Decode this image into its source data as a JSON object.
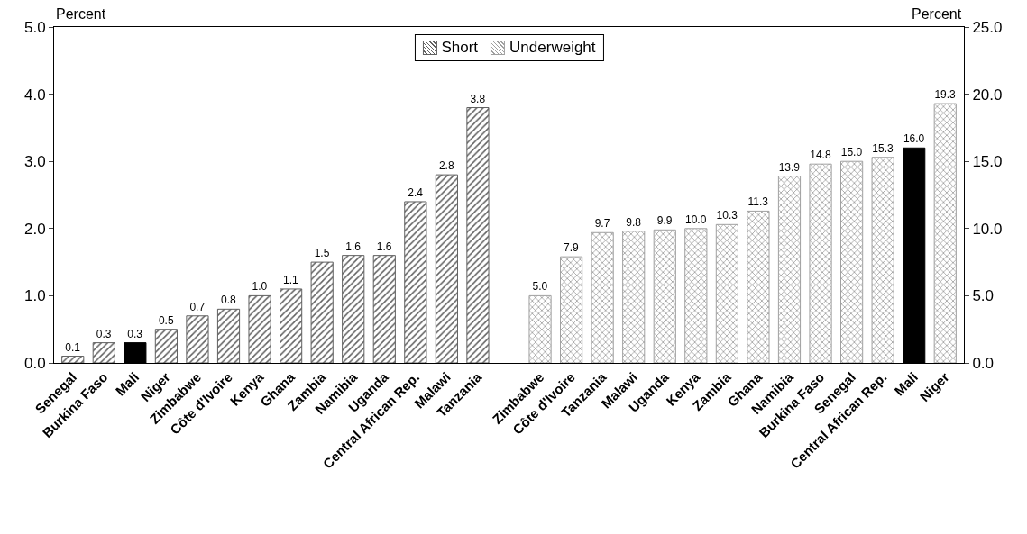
{
  "chart_data": {
    "type": "bar",
    "categories": [
      "Senegal",
      "Burkina Faso",
      "Mali",
      "Niger",
      "Zimbabwe",
      "Côte d'Ivoire",
      "Kenya",
      "Ghana",
      "Zambia",
      "Namibia",
      "Uganda",
      "Central African Rep.",
      "Malawi",
      "Tanzania",
      null,
      "Zimbabwe",
      "Côte d'Ivoire",
      "Tanzania",
      "Malawi",
      "Uganda",
      "Kenya",
      "Zambia",
      "Ghana",
      "Namibia",
      "Burkina Faso",
      "Senegal",
      "Central African Rep.",
      "Mali",
      "Niger"
    ],
    "series": [
      {
        "name": "Short",
        "color": "#606060",
        "colors": [
          "#606060",
          "#606060",
          "#000000",
          "#606060",
          "#606060",
          "#606060",
          "#606060",
          "#606060",
          "#606060",
          "#606060",
          "#606060",
          "#606060",
          "#606060",
          "#606060",
          null,
          null,
          null,
          null,
          null,
          null,
          null,
          null,
          null,
          null,
          null,
          null,
          null,
          null,
          null
        ],
        "values": [
          0.1,
          0.3,
          0.3,
          0.5,
          0.7,
          0.8,
          1.0,
          1.1,
          1.5,
          1.6,
          1.6,
          2.4,
          2.8,
          3.8,
          null,
          null,
          null,
          null,
          null,
          null,
          null,
          null,
          null,
          null,
          null,
          null,
          null,
          null,
          null
        ],
        "value_labels": [
          "0.1",
          "0.3",
          "0.3",
          "0.5",
          "0.7",
          "0.8",
          "1.0",
          "1.1",
          "1.5",
          "1.6",
          "1.6",
          "2.4",
          "2.8",
          "3.8",
          null,
          null,
          null,
          null,
          null,
          null,
          null,
          null,
          null,
          null,
          null,
          null,
          null,
          null,
          null
        ]
      },
      {
        "name": "Underweight",
        "color": "#a0a0a0",
        "axis": "y2",
        "colors": [
          null,
          null,
          null,
          null,
          null,
          null,
          null,
          null,
          null,
          null,
          null,
          null,
          null,
          null,
          null,
          "#a0a0a0",
          "#a0a0a0",
          "#a0a0a0",
          "#a0a0a0",
          "#a0a0a0",
          "#a0a0a0",
          "#a0a0a0",
          "#a0a0a0",
          "#a0a0a0",
          "#a0a0a0",
          "#a0a0a0",
          "#a0a0a0",
          "#000000",
          "#a0a0a0"
        ],
        "values": [
          null,
          null,
          null,
          null,
          null,
          null,
          null,
          null,
          null,
          null,
          null,
          null,
          null,
          null,
          null,
          5.0,
          7.9,
          9.7,
          9.8,
          9.9,
          10.0,
          10.3,
          11.3,
          13.9,
          14.8,
          15.0,
          15.3,
          16.0,
          19.3
        ],
        "value_labels": [
          null,
          null,
          null,
          null,
          null,
          null,
          null,
          null,
          null,
          null,
          null,
          null,
          null,
          null,
          null,
          "5.0",
          "7.9",
          "9.7",
          "9.8",
          "9.9",
          "10.0",
          "10.3",
          "11.3",
          "13.9",
          "14.8",
          "15.0",
          "15.3",
          "16.0",
          "19.3"
        ]
      }
    ],
    "ylabel": "Percent",
    "y2label": "Percent",
    "ylim": [
      0,
      5
    ],
    "yticks": [
      {
        "value": 0,
        "label": "0.0"
      },
      {
        "value": 1,
        "label": "1.0"
      },
      {
        "value": 2,
        "label": "2.0"
      },
      {
        "value": 3,
        "label": "3.0"
      },
      {
        "value": 4,
        "label": "4.0"
      },
      {
        "value": 5,
        "label": "5.0"
      }
    ],
    "y2lim": [
      0,
      25
    ],
    "y2ticks": [
      {
        "value": 0,
        "label": "0.0"
      },
      {
        "value": 5,
        "label": "5.0"
      },
      {
        "value": 10,
        "label": "10.0"
      },
      {
        "value": 15,
        "label": "15.0"
      },
      {
        "value": 20,
        "label": "20.0"
      },
      {
        "value": 25,
        "label": "25.0"
      }
    ],
    "grid": false,
    "legend": "top"
  }
}
